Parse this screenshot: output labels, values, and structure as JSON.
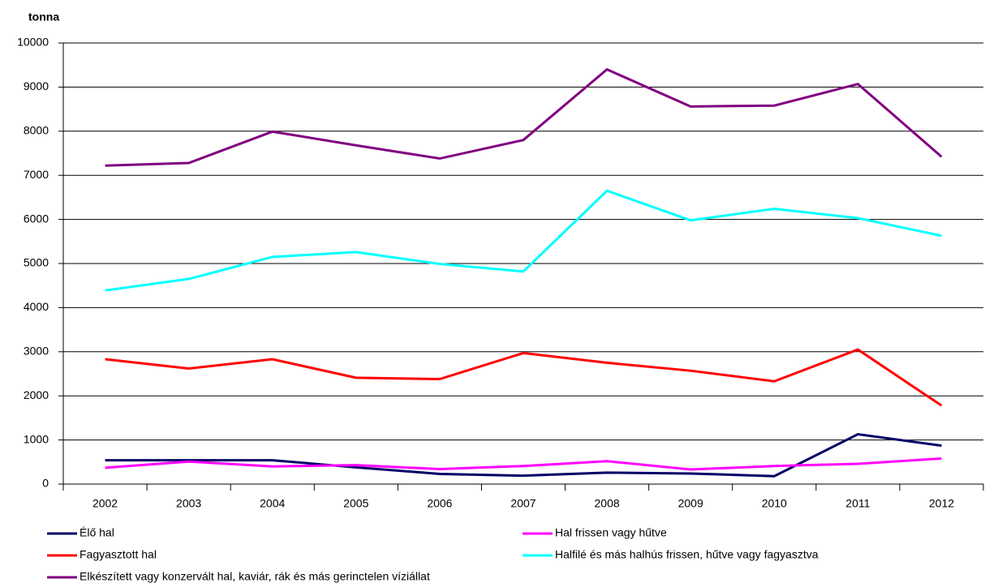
{
  "chart_data": {
    "type": "line",
    "y_axis_label": "tonna",
    "categories": [
      "2002",
      "2003",
      "2004",
      "2005",
      "2006",
      "2007",
      "2008",
      "2009",
      "2010",
      "2011",
      "2012"
    ],
    "series": [
      {
        "name": "Élő hal",
        "color": "#000066",
        "values": [
          540,
          540,
          540,
          380,
          230,
          190,
          260,
          240,
          180,
          1130,
          870
        ]
      },
      {
        "name": "Hal frissen vagy hűtve",
        "color": "#ff00ff",
        "values": [
          370,
          510,
          400,
          430,
          340,
          410,
          520,
          330,
          410,
          460,
          580
        ]
      },
      {
        "name": "Fagyasztott hal",
        "color": "#ff0000",
        "values": [
          2830,
          2620,
          2830,
          2410,
          2380,
          2970,
          2750,
          2570,
          2330,
          3050,
          1780
        ]
      },
      {
        "name": "Halfilé és más halhús frissen, hűtve vagy fagyasztva",
        "color": "#00ffff",
        "values": [
          4390,
          4650,
          5150,
          5260,
          4990,
          4820,
          6650,
          5980,
          6240,
          6030,
          5630
        ]
      },
      {
        "name": "Elkészített vagy konzervált hal, kaviár, rák és más gerinctelen víziállat",
        "color": "#800080",
        "values": [
          7220,
          7280,
          7990,
          7680,
          7380,
          7800,
          9400,
          8560,
          8580,
          9070,
          7420
        ]
      }
    ],
    "ylim": [
      0,
      10000
    ],
    "yticks": [
      0,
      1000,
      2000,
      3000,
      4000,
      5000,
      6000,
      7000,
      8000,
      9000,
      10000
    ],
    "grid": true
  }
}
